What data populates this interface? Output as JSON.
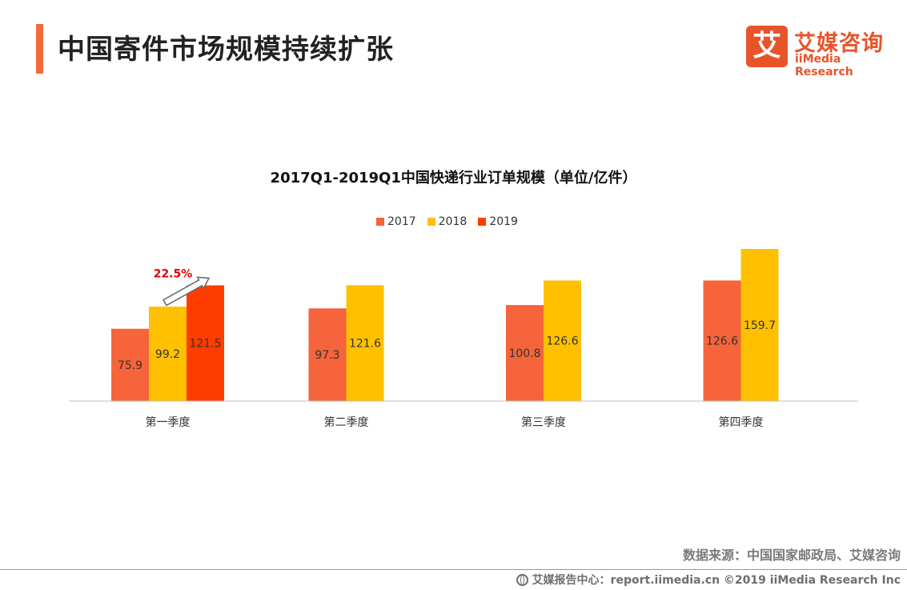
{
  "header": {
    "title": "中国寄件市场规模持续扩张",
    "accent_color": "#F26B3A"
  },
  "logo": {
    "glyph": "艾",
    "name_cn": "艾媒咨询",
    "name_en": "iiMedia Research",
    "color": "#E8542A"
  },
  "chart_data": {
    "type": "bar",
    "title": "2017Q1-2019Q1中国快递行业订单规模（单位/亿件）",
    "categories": [
      "第一季度",
      "第二季度",
      "第三季度",
      "第四季度"
    ],
    "series": [
      {
        "name": "2017",
        "color": "#F5643A",
        "values": [
          75.9,
          97.3,
          100.8,
          126.6
        ]
      },
      {
        "name": "2018",
        "color": "#FFC000",
        "values": [
          99.2,
          121.6,
          126.6,
          159.7
        ]
      },
      {
        "name": "2019",
        "color": "#FF3C00",
        "values": [
          121.5,
          null,
          null,
          null
        ]
      }
    ],
    "ylim": [
      0,
      165
    ],
    "annotation": {
      "text": "22.5%",
      "category": "第一季度",
      "color": "#E00000"
    },
    "legend_position": "top-center"
  },
  "source": "数据来源：中国国家邮政局、艾媒咨询",
  "footer": "艾媒报告中心：report.iimedia.cn  ©2019  iiMedia Research  Inc"
}
